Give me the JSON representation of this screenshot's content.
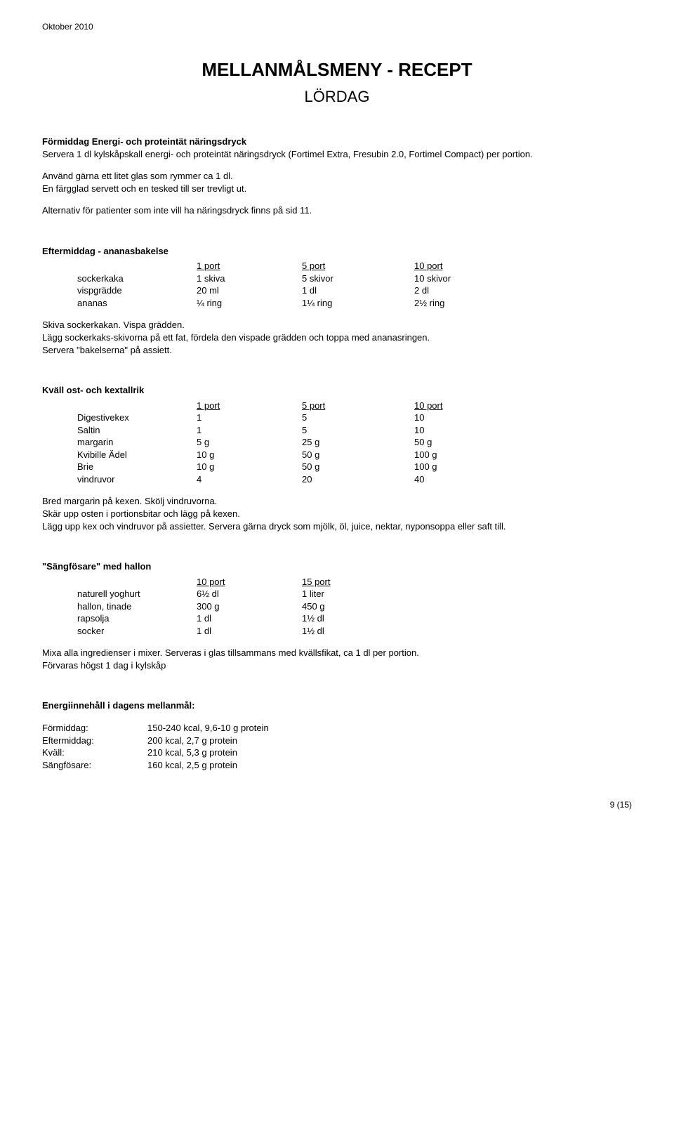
{
  "header_date": "Oktober 2010",
  "title": "MELLANMÅLSMENY - RECEPT",
  "subtitle": "LÖRDAG",
  "s1": {
    "head": "Förmiddag Energi- och proteintät näringsdryck",
    "p1": "Servera 1 dl kylskåpskall energi- och proteintät näringsdryck (Fortimel Extra, Fresubin 2.0, Fortimel Compact) per portion.",
    "p2": "Använd gärna ett litet glas som rymmer ca 1 dl.",
    "p3": "En färgglad servett och en tesked till ser trevligt ut.",
    "p4": "Alternativ för patienter som inte vill ha näringsdryck finns på sid 11."
  },
  "s2": {
    "head": "Eftermiddag - ananasbakelse",
    "headers": [
      "",
      "1 port",
      "5 port",
      "10 port"
    ],
    "rows": [
      [
        "sockerkaka",
        "1 skiva",
        "5 skivor",
        "10 skivor"
      ],
      [
        "vispgrädde",
        "20 ml",
        "1 dl",
        "2 dl"
      ],
      [
        "ananas",
        "¼ ring",
        "1¼ ring",
        "2½ ring"
      ]
    ],
    "p1": "Skiva sockerkakan. Vispa grädden.",
    "p2": "Lägg sockerkaks-skivorna på ett fat, fördela den vispade grädden och toppa med ananasringen.",
    "p3": "Servera \"bakelserna\" på assiett."
  },
  "s3": {
    "head": "Kväll ost- och kextallrik",
    "headers": [
      "",
      "1 port",
      "5 port",
      "10 port"
    ],
    "rows": [
      [
        "Digestivekex",
        "1",
        "5",
        "10"
      ],
      [
        "Saltin",
        "1",
        "5",
        "10"
      ],
      [
        "margarin",
        "5 g",
        "25 g",
        "50 g"
      ],
      [
        "Kvibille Ädel",
        "10 g",
        "50 g",
        "100 g"
      ],
      [
        "Brie",
        "10 g",
        "50 g",
        "100 g"
      ],
      [
        "vindruvor",
        "4",
        "20",
        "40"
      ]
    ],
    "p1": "Bred margarin på kexen. Skölj vindruvorna.",
    "p2": "Skär upp osten i portionsbitar och lägg på kexen.",
    "p3": "Lägg upp kex och vindruvor på assietter. Servera gärna dryck som mjölk, öl, juice, nektar, nyponsoppa eller saft till."
  },
  "s4": {
    "head": "\"Sängfösare\" med hallon",
    "headers": [
      "",
      "10 port",
      "15 port"
    ],
    "rows": [
      [
        "naturell yoghurt",
        "6½ dl",
        "1 liter"
      ],
      [
        "hallon, tinade",
        "300 g",
        "450 g"
      ],
      [
        "rapsolja",
        "1 dl",
        "1½ dl"
      ],
      [
        "socker",
        "1 dl",
        "1½ dl"
      ]
    ],
    "p1": "Mixa alla ingredienser i mixer. Serveras i glas tillsammans med kvällsfikat, ca 1 dl per portion.",
    "p2": "Förvaras högst 1 dag i kylskåp"
  },
  "energy": {
    "head": "Energiinnehåll i dagens mellanmål:",
    "rows": [
      [
        "Förmiddag:",
        "150-240 kcal, 9,6-10 g protein"
      ],
      [
        "Eftermiddag:",
        "200 kcal, 2,7 g protein"
      ],
      [
        "Kväll:",
        "210 kcal, 5,3 g protein"
      ],
      [
        "Sängfösare:",
        "160 kcal, 2,5 g protein"
      ]
    ]
  },
  "footer": "9 (15)"
}
